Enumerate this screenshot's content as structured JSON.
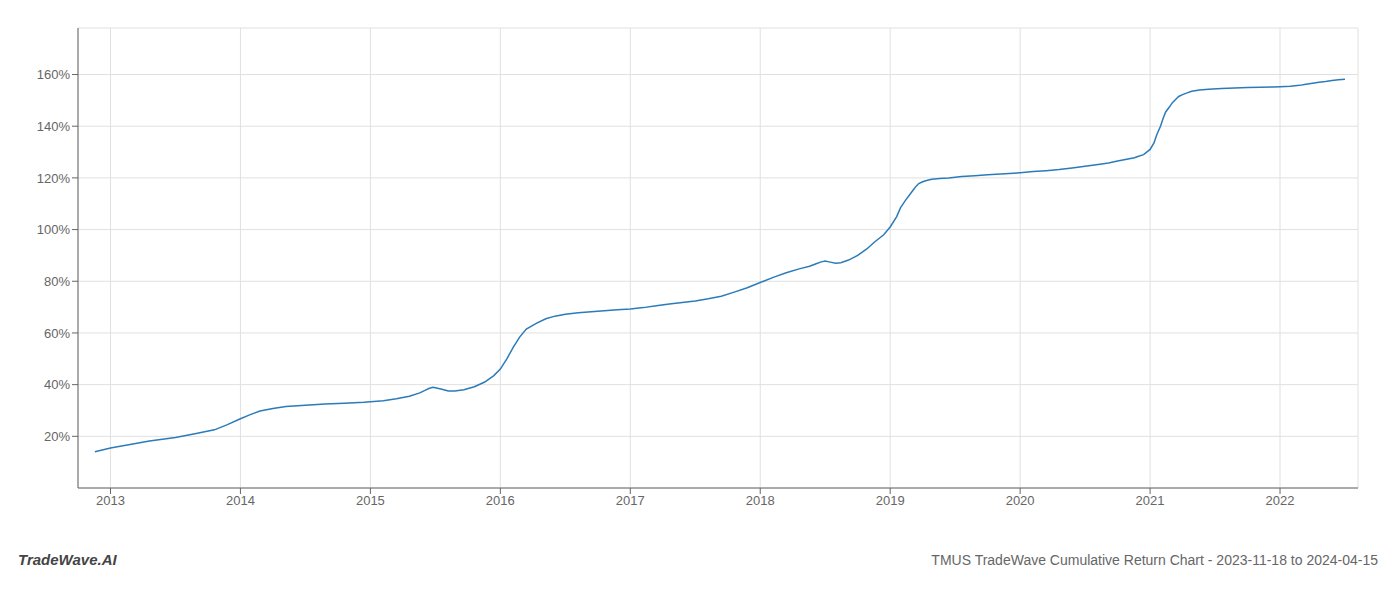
{
  "chart_data": {
    "type": "line",
    "title": "TMUS TradeWave Cumulative Return Chart - 2023-11-18 to 2024-04-15",
    "annotations": [
      "TradeWave.AI"
    ],
    "color": "#2b7bb9",
    "grid": true,
    "x": [
      2012.88,
      2013.0,
      2013.15,
      2013.3,
      2013.5,
      2013.65,
      2013.8,
      2013.9,
      2014.0,
      2014.08,
      2014.15,
      2014.25,
      2014.35,
      2014.5,
      2014.65,
      2014.8,
      2014.95,
      2015.1,
      2015.2,
      2015.3,
      2015.38,
      2015.42,
      2015.45,
      2015.48,
      2015.5,
      2015.55,
      2015.6,
      2015.65,
      2015.72,
      2015.8,
      2015.88,
      2015.95,
      2016.0,
      2016.05,
      2016.1,
      2016.15,
      2016.2,
      2016.28,
      2016.35,
      2016.42,
      2016.5,
      2016.6,
      2016.7,
      2016.8,
      2016.9,
      2017.0,
      2017.1,
      2017.2,
      2017.3,
      2017.4,
      2017.5,
      2017.6,
      2017.7,
      2017.8,
      2017.9,
      2018.0,
      2018.1,
      2018.2,
      2018.3,
      2018.38,
      2018.43,
      2018.47,
      2018.5,
      2018.53,
      2018.58,
      2018.62,
      2018.68,
      2018.75,
      2018.82,
      2018.88,
      2018.95,
      2019.0,
      2019.05,
      2019.08,
      2019.12,
      2019.15,
      2019.18,
      2019.2,
      2019.22,
      2019.25,
      2019.28,
      2019.32,
      2019.38,
      2019.45,
      2019.55,
      2019.65,
      2019.75,
      2019.85,
      2019.95,
      2020.0,
      2020.1,
      2020.2,
      2020.3,
      2020.4,
      2020.5,
      2020.6,
      2020.68,
      2020.75,
      2020.82,
      2020.88,
      2020.9,
      2020.95,
      2021.0,
      2021.03,
      2021.05,
      2021.08,
      2021.1,
      2021.12,
      2021.15,
      2021.17,
      2021.2,
      2021.22,
      2021.25,
      2021.28,
      2021.32,
      2021.38,
      2021.45,
      2021.55,
      2021.65,
      2021.75,
      2021.85,
      2021.95,
      2022.0,
      2022.08,
      2022.15,
      2022.2,
      2022.25,
      2022.3,
      2022.35,
      2022.4,
      2022.45,
      2022.5
    ],
    "values": [
      0.14,
      0.155,
      0.168,
      0.182,
      0.195,
      0.21,
      0.225,
      0.245,
      0.268,
      0.285,
      0.298,
      0.308,
      0.315,
      0.32,
      0.325,
      0.328,
      0.332,
      0.338,
      0.345,
      0.355,
      0.368,
      0.378,
      0.385,
      0.39,
      0.388,
      0.382,
      0.375,
      0.375,
      0.38,
      0.392,
      0.41,
      0.435,
      0.46,
      0.5,
      0.545,
      0.585,
      0.615,
      0.638,
      0.655,
      0.665,
      0.672,
      0.678,
      0.682,
      0.686,
      0.69,
      0.693,
      0.698,
      0.705,
      0.712,
      0.718,
      0.724,
      0.732,
      0.742,
      0.758,
      0.775,
      0.795,
      0.815,
      0.833,
      0.848,
      0.858,
      0.868,
      0.875,
      0.878,
      0.875,
      0.87,
      0.872,
      0.882,
      0.9,
      0.925,
      0.952,
      0.98,
      1.01,
      1.05,
      1.085,
      1.115,
      1.135,
      1.155,
      1.168,
      1.178,
      1.185,
      1.19,
      1.195,
      1.198,
      1.2,
      1.205,
      1.208,
      1.212,
      1.215,
      1.218,
      1.22,
      1.225,
      1.228,
      1.232,
      1.238,
      1.245,
      1.252,
      1.258,
      1.265,
      1.272,
      1.278,
      1.282,
      1.29,
      1.31,
      1.335,
      1.365,
      1.4,
      1.43,
      1.455,
      1.475,
      1.49,
      1.505,
      1.515,
      1.522,
      1.528,
      1.535,
      1.54,
      1.543,
      1.546,
      1.548,
      1.55,
      1.551,
      1.552,
      1.553,
      1.555,
      1.558,
      1.562,
      1.566,
      1.57,
      1.573,
      1.577,
      1.58,
      1.582
    ],
    "xlim": [
      2012.75,
      2022.6
    ],
    "xticks": [
      2013,
      2014,
      2015,
      2016,
      2017,
      2018,
      2019,
      2020,
      2021,
      2022
    ],
    "ylim": [
      0.0,
      1.78
    ],
    "yticks": [
      {
        "value": 0.2,
        "label": "20%"
      },
      {
        "value": 0.4,
        "label": "40%"
      },
      {
        "value": 0.6,
        "label": "60%"
      },
      {
        "value": 0.8,
        "label": "80%"
      },
      {
        "value": 1.0,
        "label": "100%"
      },
      {
        "value": 1.2,
        "label": "120%"
      },
      {
        "value": 1.4,
        "label": "140%"
      },
      {
        "value": 1.6,
        "label": "160%"
      }
    ]
  }
}
